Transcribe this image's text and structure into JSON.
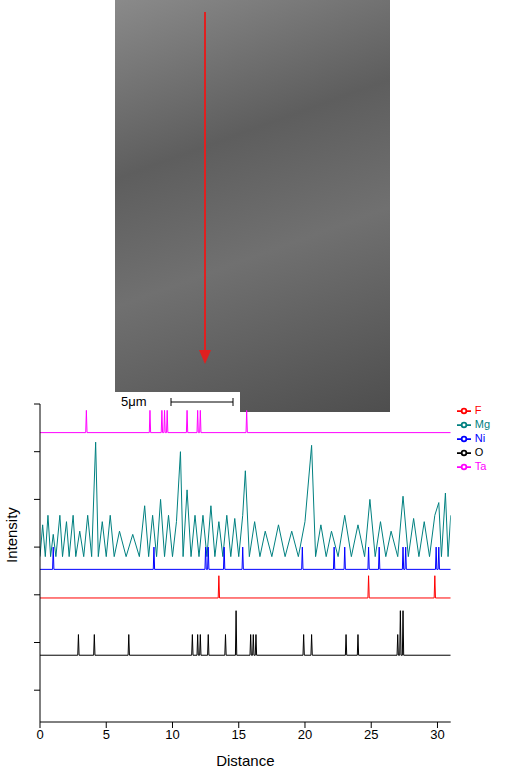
{
  "image": {
    "scale_bar": "5μm"
  },
  "chart_data": {
    "type": "line",
    "x_label": "Distance",
    "y_label": "Intensity",
    "xlim": [
      0,
      31
    ],
    "xticks": [
      0,
      5,
      10,
      15,
      20,
      25,
      30
    ],
    "ylim": [
      0,
      10
    ],
    "yticks": [
      1,
      2.5,
      4,
      5.5,
      7,
      8.5,
      10
    ],
    "tick_labels": "x",
    "grid": false,
    "legend": "right",
    "series": [
      {
        "name": "Ta",
        "color": "#ff00ff",
        "x": [
          0,
          3.45,
          3.5,
          3.55,
          8.25,
          8.3,
          8.35,
          9.15,
          9.2,
          9.25,
          9.35,
          9.4,
          9.45,
          9.55,
          9.6,
          9.65,
          11.05,
          11.1,
          11.15,
          11.85,
          11.9,
          11.95,
          12.05,
          12.1,
          12.15,
          15.55,
          15.6,
          15.65,
          31
        ],
        "values": [
          9.1,
          9.1,
          9.8,
          9.1,
          9.1,
          9.8,
          9.1,
          9.1,
          9.8,
          9.1,
          9.1,
          9.8,
          9.1,
          9.1,
          9.8,
          9.1,
          9.1,
          9.8,
          9.1,
          9.1,
          9.8,
          9.1,
          9.1,
          9.8,
          9.1,
          9.1,
          9.8,
          9.1,
          9.1
        ]
      },
      {
        "name": "Mg",
        "color": "#008080",
        "x": [
          0,
          0.2,
          0.4,
          0.6,
          0.8,
          1.0,
          1.2,
          1.5,
          1.7,
          2.0,
          2.2,
          2.5,
          2.7,
          3.0,
          3.3,
          3.6,
          3.9,
          4.2,
          4.4,
          4.7,
          5.0,
          5.3,
          5.6,
          6.0,
          6.5,
          7.0,
          7.5,
          7.9,
          8.2,
          8.5,
          8.8,
          9.1,
          9.4,
          9.7,
          10.0,
          10.3,
          10.6,
          10.8,
          11.1,
          11.4,
          11.7,
          12.0,
          12.3,
          12.6,
          12.9,
          13.2,
          13.5,
          13.8,
          14.1,
          14.4,
          14.7,
          15.0,
          15.3,
          15.5,
          15.8,
          16.2,
          16.6,
          17.0,
          17.5,
          18.0,
          18.5,
          19.0,
          19.5,
          20.0,
          20.5,
          20.8,
          21.2,
          21.6,
          22.0,
          22.5,
          23.0,
          23.5,
          24.0,
          24.5,
          24.9,
          25.3,
          25.7,
          26.1,
          26.5,
          27.0,
          27.4,
          27.8,
          28.2,
          28.6,
          29.0,
          29.4,
          29.8,
          30.1,
          30.3,
          30.6,
          30.8,
          31.0
        ],
        "values": [
          5.2,
          6.2,
          5.2,
          6.5,
          5.2,
          5.9,
          5.2,
          6.5,
          5.2,
          6.3,
          5.2,
          6.5,
          5.2,
          6.0,
          5.2,
          6.5,
          5.2,
          8.8,
          5.2,
          6.3,
          5.2,
          6.5,
          5.2,
          6.0,
          5.2,
          5.9,
          5.2,
          6.8,
          5.2,
          6.5,
          5.2,
          7.0,
          5.2,
          6.5,
          5.2,
          6.3,
          8.5,
          5.2,
          7.3,
          5.2,
          6.5,
          5.2,
          6.5,
          5.2,
          6.8,
          5.2,
          6.3,
          5.2,
          6.5,
          5.2,
          6.4,
          5.2,
          6.5,
          7.9,
          5.2,
          6.3,
          5.2,
          6.0,
          5.2,
          6.2,
          5.2,
          6.0,
          5.2,
          6.3,
          8.7,
          5.2,
          6.2,
          5.2,
          6.0,
          5.2,
          6.5,
          5.2,
          6.2,
          5.2,
          7.0,
          5.2,
          6.3,
          5.2,
          6.0,
          5.2,
          7.1,
          5.2,
          6.4,
          5.2,
          6.3,
          5.2,
          6.5,
          6.9,
          5.2,
          7.2,
          5.2,
          6.5
        ]
      },
      {
        "name": "Ni",
        "color": "#0000ff",
        "x": [
          0,
          0.95,
          1.0,
          1.05,
          8.55,
          8.6,
          8.65,
          12.45,
          12.5,
          12.55,
          12.65,
          12.7,
          12.75,
          13.85,
          13.9,
          13.95,
          15.25,
          15.3,
          15.35,
          19.75,
          19.8,
          19.85,
          22.15,
          22.2,
          22.25,
          22.95,
          23.0,
          23.05,
          24.75,
          24.8,
          24.85,
          25.55,
          25.6,
          25.65,
          27.35,
          27.4,
          27.45,
          27.55,
          27.6,
          27.65,
          29.85,
          29.9,
          29.95,
          30.05,
          30.1,
          30.15,
          31
        ],
        "values": [
          4.8,
          4.8,
          5.5,
          4.8,
          4.8,
          5.5,
          4.8,
          4.8,
          5.5,
          4.8,
          4.8,
          5.5,
          4.8,
          4.8,
          5.5,
          4.8,
          4.8,
          5.5,
          4.8,
          4.8,
          5.5,
          4.8,
          4.8,
          5.5,
          4.8,
          4.8,
          5.5,
          4.8,
          4.8,
          5.5,
          4.8,
          4.8,
          5.5,
          4.8,
          4.8,
          5.5,
          4.8,
          4.8,
          5.5,
          4.8,
          4.8,
          5.5,
          4.8,
          4.8,
          5.5,
          4.8,
          4.8
        ]
      },
      {
        "name": "F",
        "color": "#ff0000",
        "x": [
          0,
          13.45,
          13.5,
          13.55,
          24.75,
          24.8,
          24.85,
          29.75,
          29.8,
          29.85,
          31
        ],
        "values": [
          3.9,
          3.9,
          4.6,
          3.9,
          3.9,
          4.6,
          3.9,
          3.9,
          4.6,
          3.9,
          3.9
        ]
      },
      {
        "name": "O",
        "color": "#000000",
        "x": [
          0,
          2.85,
          2.9,
          2.95,
          4.05,
          4.1,
          4.15,
          6.65,
          6.7,
          6.75,
          11.45,
          11.5,
          11.55,
          11.85,
          11.9,
          11.95,
          12.05,
          12.1,
          12.15,
          12.65,
          12.7,
          12.75,
          13.95,
          14.0,
          14.05,
          14.75,
          14.8,
          14.85,
          15.85,
          15.9,
          15.95,
          16.05,
          16.1,
          16.15,
          16.25,
          16.3,
          16.35,
          19.85,
          19.9,
          19.95,
          20.45,
          20.5,
          20.55,
          23.05,
          23.1,
          23.15,
          23.95,
          24.0,
          24.05,
          26.95,
          27.0,
          27.05,
          27.15,
          27.2,
          27.25,
          27.35,
          27.4,
          27.45,
          31
        ],
        "values": [
          2.1,
          2.1,
          2.75,
          2.1,
          2.1,
          2.75,
          2.1,
          2.1,
          2.75,
          2.1,
          2.1,
          2.75,
          2.1,
          2.1,
          2.75,
          2.1,
          2.1,
          2.75,
          2.1,
          2.1,
          2.75,
          2.1,
          2.1,
          2.75,
          2.1,
          2.1,
          3.5,
          2.1,
          2.1,
          2.75,
          2.1,
          2.1,
          2.75,
          2.1,
          2.1,
          2.75,
          2.1,
          2.1,
          2.75,
          2.1,
          2.1,
          2.75,
          2.1,
          2.1,
          2.75,
          2.1,
          2.1,
          2.75,
          2.1,
          2.1,
          2.75,
          2.1,
          2.1,
          3.5,
          2.1,
          2.1,
          3.5,
          2.1,
          2.1
        ]
      }
    ]
  }
}
